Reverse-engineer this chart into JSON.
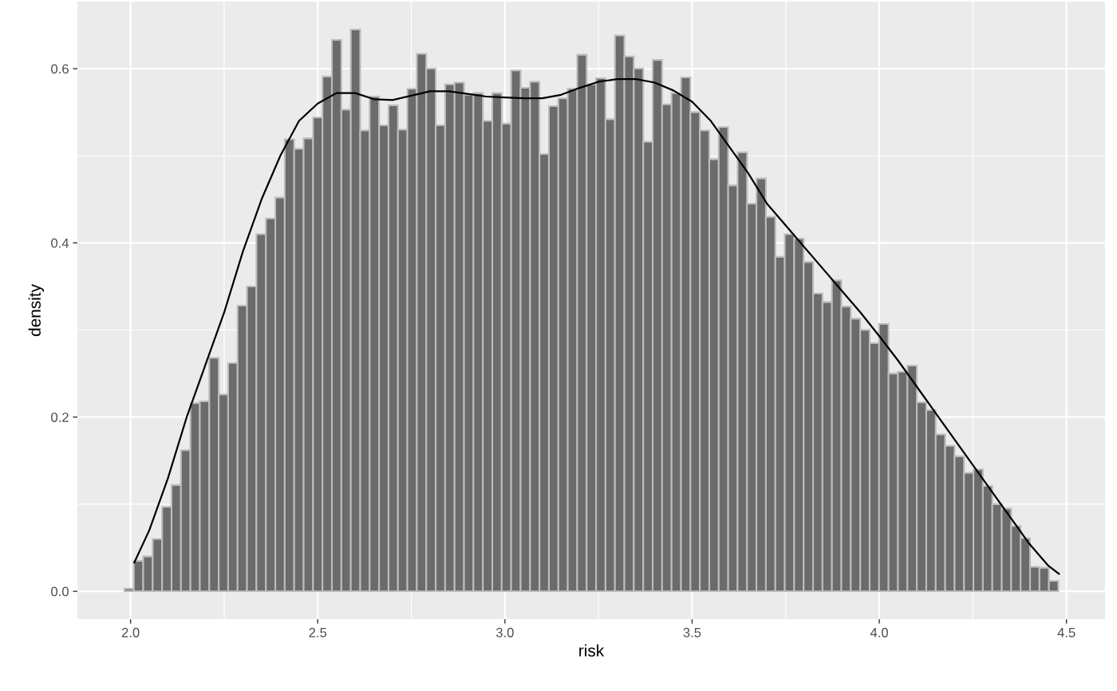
{
  "chart_data": {
    "type": "histogram",
    "xlabel": "risk",
    "ylabel": "density",
    "bins": [
      1.9835,
      2.0087,
      2.0339,
      2.0591,
      2.0843,
      2.1095,
      2.1347,
      2.1599,
      2.1851,
      2.2103,
      2.2355,
      2.2607,
      2.2859,
      2.3111,
      2.3363,
      2.3615,
      2.3867,
      2.4119,
      2.4371,
      2.4623,
      2.4875,
      2.5127,
      2.5379,
      2.5631,
      2.5883,
      2.6135,
      2.6387,
      2.6639,
      2.6891,
      2.7143,
      2.7395,
      2.7647,
      2.7899,
      2.8151,
      2.8403,
      2.8655,
      2.8907,
      2.9159,
      2.9411,
      2.9663,
      2.9915,
      3.0167,
      3.0419,
      3.0671,
      3.0923,
      3.1175,
      3.1427,
      3.1679,
      3.1931,
      3.2183,
      3.2435,
      3.2687,
      3.2939,
      3.3191,
      3.3443,
      3.3695,
      3.3947,
      3.4199,
      3.4451,
      3.4703,
      3.4955,
      3.5207,
      3.5459,
      3.5711,
      3.5963,
      3.6215,
      3.6467,
      3.6719,
      3.6971,
      3.7223,
      3.7475,
      3.7727,
      3.7979,
      3.8231,
      3.8483,
      3.8735,
      3.8987,
      3.9239,
      3.9491,
      3.9743,
      3.9995,
      4.0247,
      4.0499,
      4.0751,
      4.1003,
      4.1255,
      4.1507,
      4.1759,
      4.2011,
      4.2263,
      4.2515,
      4.2767,
      4.3019,
      4.3271,
      4.3523,
      4.3775,
      4.4027,
      4.4279,
      4.4531,
      4.4783
    ],
    "values": [
      0.003,
      0.035,
      0.04,
      0.06,
      0.097,
      0.122,
      0.162,
      0.216,
      0.218,
      0.268,
      0.226,
      0.262,
      0.328,
      0.35,
      0.41,
      0.428,
      0.452,
      0.519,
      0.508,
      0.52,
      0.544,
      0.591,
      0.633,
      0.553,
      0.645,
      0.529,
      0.568,
      0.535,
      0.558,
      0.53,
      0.577,
      0.617,
      0.6,
      0.535,
      0.582,
      0.584,
      0.57,
      0.572,
      0.54,
      0.572,
      0.537,
      0.598,
      0.578,
      0.585,
      0.502,
      0.557,
      0.566,
      0.577,
      0.616,
      0.582,
      0.589,
      0.542,
      0.638,
      0.614,
      0.6,
      0.516,
      0.61,
      0.559,
      0.572,
      0.59,
      0.55,
      0.529,
      0.496,
      0.533,
      0.466,
      0.504,
      0.445,
      0.474,
      0.43,
      0.384,
      0.41,
      0.405,
      0.378,
      0.342,
      0.332,
      0.357,
      0.327,
      0.313,
      0.3,
      0.285,
      0.307,
      0.25,
      0.252,
      0.259,
      0.217,
      0.208,
      0.18,
      0.167,
      0.155,
      0.136,
      0.14,
      0.121,
      0.1,
      0.095,
      0.075,
      0.061,
      0.028,
      0.027,
      0.012
    ],
    "color": "#6b6b6b",
    "series": [
      {
        "type": "line",
        "color": "#000000",
        "x": [
          2.01,
          2.05,
          2.1,
          2.15,
          2.2,
          2.25,
          2.3,
          2.35,
          2.4,
          2.45,
          2.5,
          2.55,
          2.6,
          2.65,
          2.7,
          2.75,
          2.8,
          2.85,
          2.9,
          2.95,
          3.0,
          3.05,
          3.1,
          3.15,
          3.2,
          3.25,
          3.3,
          3.35,
          3.4,
          3.45,
          3.5,
          3.55,
          3.6,
          3.65,
          3.7,
          3.75,
          3.8,
          3.85,
          3.9,
          3.95,
          4.0,
          4.05,
          4.1,
          4.15,
          4.2,
          4.25,
          4.3,
          4.35,
          4.4,
          4.45,
          4.48
        ],
        "values": [
          0.033,
          0.07,
          0.13,
          0.2,
          0.26,
          0.32,
          0.39,
          0.45,
          0.5,
          0.54,
          0.56,
          0.572,
          0.572,
          0.565,
          0.564,
          0.569,
          0.574,
          0.574,
          0.571,
          0.568,
          0.567,
          0.566,
          0.566,
          0.57,
          0.578,
          0.585,
          0.588,
          0.588,
          0.584,
          0.575,
          0.562,
          0.54,
          0.51,
          0.48,
          0.445,
          0.42,
          0.395,
          0.37,
          0.345,
          0.32,
          0.293,
          0.265,
          0.235,
          0.205,
          0.175,
          0.145,
          0.115,
          0.085,
          0.055,
          0.03,
          0.02
        ]
      }
    ],
    "xlim": [
      1.858,
      4.603
    ],
    "ylim": [
      -0.032,
      0.677
    ],
    "xticks": [
      {
        "value": 2.0,
        "label": "2.0"
      },
      {
        "value": 2.5,
        "label": "2.5"
      },
      {
        "value": 3.0,
        "label": "3.0"
      },
      {
        "value": 3.5,
        "label": "3.5"
      },
      {
        "value": 4.0,
        "label": "4.0"
      },
      {
        "value": 4.5,
        "label": "4.5"
      }
    ],
    "yticks": [
      {
        "value": 0.0,
        "label": "0.0"
      },
      {
        "value": 0.2,
        "label": "0.2"
      },
      {
        "value": 0.4,
        "label": "0.4"
      },
      {
        "value": 0.6,
        "label": "0.6"
      }
    ],
    "grid": true
  }
}
